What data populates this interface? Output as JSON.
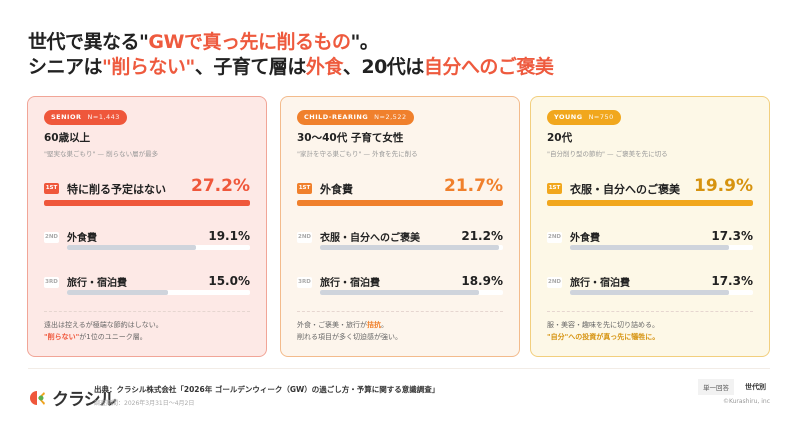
{
  "headline": {
    "line1": [
      {
        "t": "世代で異なる\"",
        "hl": false
      },
      {
        "t": "GWで真っ先に削るもの",
        "hl": true
      },
      {
        "t": "\"。",
        "hl": false
      }
    ],
    "line2": [
      {
        "t": "シニアは",
        "hl": false
      },
      {
        "t": "\"削らない\"",
        "hl": true
      },
      {
        "t": "、子育て層は",
        "hl": false
      },
      {
        "t": "外食",
        "hl": true
      },
      {
        "t": "、20代は",
        "hl": false
      },
      {
        "t": "自分へのご褒美",
        "hl": true
      }
    ]
  },
  "cards": [
    {
      "segment": "SENIOR",
      "n": "N=1,443",
      "age": "60歳以上",
      "subtitle": "\"堅実な巣ごもり\" — 削らない層が最多",
      "accent": "#ef573b",
      "value_color": "#ef573b",
      "bg": "#fde9e6",
      "border": "#f1a597",
      "rows": [
        {
          "rank": "1ST",
          "label": "特に削る予定はない",
          "value": "27.2%",
          "pct": 27.2
        },
        {
          "rank": "2ND",
          "label": "外食費",
          "value": "19.1%",
          "pct": 19.1
        },
        {
          "rank": "3RD",
          "label": "旅行・宿泊費",
          "value": "15.0%",
          "pct": 15.0
        }
      ],
      "note_line1": [
        {
          "t": "遠出は控えるが極端な節約はしない。",
          "hl": false
        }
      ],
      "note_line2": [
        {
          "t": "\"削らない\"",
          "hl": true
        },
        {
          "t": "が1位のユニーク層。",
          "hl": false
        }
      ]
    },
    {
      "segment": "CHILD-REARING",
      "n": "N=2,522",
      "age": "30〜40代 子育て女性",
      "subtitle": "\"家計を守る巣ごもり\" — 外食を先に削る",
      "accent": "#f0802c",
      "value_color": "#f0802c",
      "bg": "#fdf5ec",
      "border": "#f3bb8c",
      "rows": [
        {
          "rank": "1ST",
          "label": "外食費",
          "value": "21.7%",
          "pct": 21.7
        },
        {
          "rank": "2ND",
          "label": "衣服・自分へのご褒美",
          "value": "21.2%",
          "pct": 21.2
        },
        {
          "rank": "3RD",
          "label": "旅行・宿泊費",
          "value": "18.9%",
          "pct": 18.9
        }
      ],
      "note_line1": [
        {
          "t": "外食・ご褒美・旅行が",
          "hl": false
        },
        {
          "t": "拮抗",
          "hl": true
        },
        {
          "t": "。",
          "hl": false
        }
      ],
      "note_line2": [
        {
          "t": "削れる項目が多く切迫感が強い。",
          "hl": false
        }
      ]
    },
    {
      "segment": "YOUNG",
      "n": "N=750",
      "age": "20代",
      "subtitle": "\"自分削り型の節約\" — ご褒美を先に切る",
      "accent": "#f1a71d",
      "value_color": "#d69310",
      "bg": "#fdf8e7",
      "border": "#f2cf7e",
      "rows": [
        {
          "rank": "1ST",
          "label": "衣服・自分へのご褒美",
          "value": "19.9%",
          "pct": 19.9
        },
        {
          "rank": "2ND",
          "label": "外食費",
          "value": "17.3%",
          "pct": 17.3
        },
        {
          "rank": "2ND",
          "label": "旅行・宿泊費",
          "value": "17.3%",
          "pct": 17.3
        }
      ],
      "note_line1": [
        {
          "t": "服・美容・趣味を先に切り詰める。",
          "hl": false
        }
      ],
      "note_line2": [
        {
          "t": "\"自分\"への投資が真っ先に犠牲に。",
          "hl": true
        }
      ]
    }
  ],
  "footer": {
    "logo_text": "クラシル",
    "source": "出典：クラシル株式会社「2026年 ゴールデンウィーク（GW）の過ごし方・予算に関する意識調査」",
    "period": "調査期間：2026年3月31日〜4月2日",
    "tag_answer": "単一回答",
    "tag_group": "世代別",
    "copyright": "©Kurashiru, inc"
  }
}
